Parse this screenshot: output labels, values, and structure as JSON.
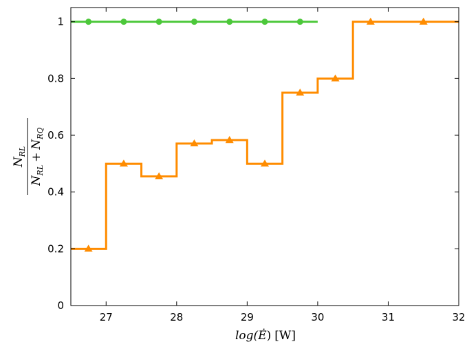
{
  "chart_data": {
    "type": "line",
    "step": true,
    "title": "",
    "xlabel_main": "log(",
    "xlabel_var": "Ė",
    "xlabel_tail": ")",
    "xlabel_unit": "[W]",
    "ylabel_num": "N",
    "ylabel_num_sub": "RL",
    "ylabel_den_a": "N",
    "ylabel_den_a_sub": "RL",
    "ylabel_den_plus": "+",
    "ylabel_den_b": "N",
    "ylabel_den_b_sub": "RQ",
    "xlim": [
      26.5,
      32
    ],
    "ylim": [
      0,
      1.05
    ],
    "xticks": [
      27,
      28,
      29,
      30,
      31,
      32
    ],
    "xtick_labels": [
      "27",
      "28",
      "29",
      "30",
      "31",
      "32"
    ],
    "yticks": [
      0,
      0.2,
      0.4,
      0.6,
      0.8,
      1
    ],
    "ytick_labels": [
      "0",
      "0.2",
      "0.4",
      "0.6",
      "0.8",
      "1"
    ],
    "grid": false,
    "legend": "none",
    "series": [
      {
        "color": "#4cc83a",
        "marker": "circle",
        "bin_edges": [
          26.5,
          27.0,
          27.5,
          28.0,
          28.5,
          29.0,
          29.5,
          30.0
        ],
        "values": [
          1,
          1,
          1,
          1,
          1,
          1,
          1
        ],
        "points_x": [
          26.75,
          27.25,
          27.75,
          28.25,
          28.75,
          29.25,
          29.75
        ],
        "points_y": [
          1,
          1,
          1,
          1,
          1,
          1,
          1
        ]
      },
      {
        "color": "#ff8c00",
        "marker": "triangle",
        "bin_edges": [
          26.5,
          27.0,
          27.5,
          28.0,
          28.5,
          29.0,
          29.5,
          30.0,
          30.5,
          32.0
        ],
        "values": [
          0.2,
          0.5,
          0.455,
          0.571,
          0.583,
          0.5,
          0.75,
          0.8,
          1.0
        ],
        "points_x": [
          26.75,
          27.25,
          27.75,
          28.25,
          28.75,
          29.25,
          29.75,
          30.25,
          30.75,
          31.5
        ],
        "points_y": [
          0.2,
          0.5,
          0.455,
          0.571,
          0.583,
          0.5,
          0.75,
          0.8,
          1.0,
          1.0
        ]
      }
    ]
  }
}
